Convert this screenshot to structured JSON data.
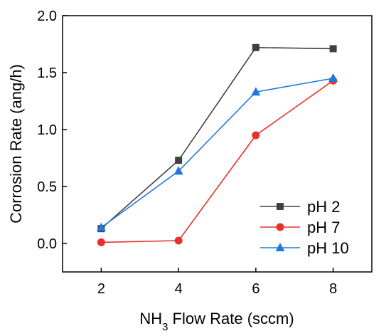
{
  "chart_data": {
    "type": "line",
    "title": "",
    "xlabel_main": "NH",
    "xlabel_sub": "3",
    "xlabel_rest": " Flow Rate (sccm)",
    "ylabel": "Corrosion Rate (ang/h)",
    "xlim": [
      1,
      9
    ],
    "ylim": [
      -0.25,
      2.0
    ],
    "xticks": [
      "2",
      "4",
      "6",
      "8"
    ],
    "yticks": [
      "0.0",
      "0.5",
      "1.0",
      "1.5",
      "2.0"
    ],
    "grid": false,
    "legend_position": "bottom-right",
    "x": [
      2,
      4,
      6,
      8
    ],
    "series": [
      {
        "name": "pH 2",
        "marker": "square",
        "color": "#404040",
        "values": [
          0.13,
          0.73,
          1.72,
          1.71
        ]
      },
      {
        "name": "pH 7",
        "marker": "circle",
        "color": "#e8312b",
        "values": [
          0.01,
          0.025,
          0.95,
          1.43
        ]
      },
      {
        "name": "pH 10",
        "marker": "triangle",
        "color": "#1f78e0",
        "values": [
          0.14,
          0.635,
          1.33,
          1.45
        ]
      }
    ]
  }
}
